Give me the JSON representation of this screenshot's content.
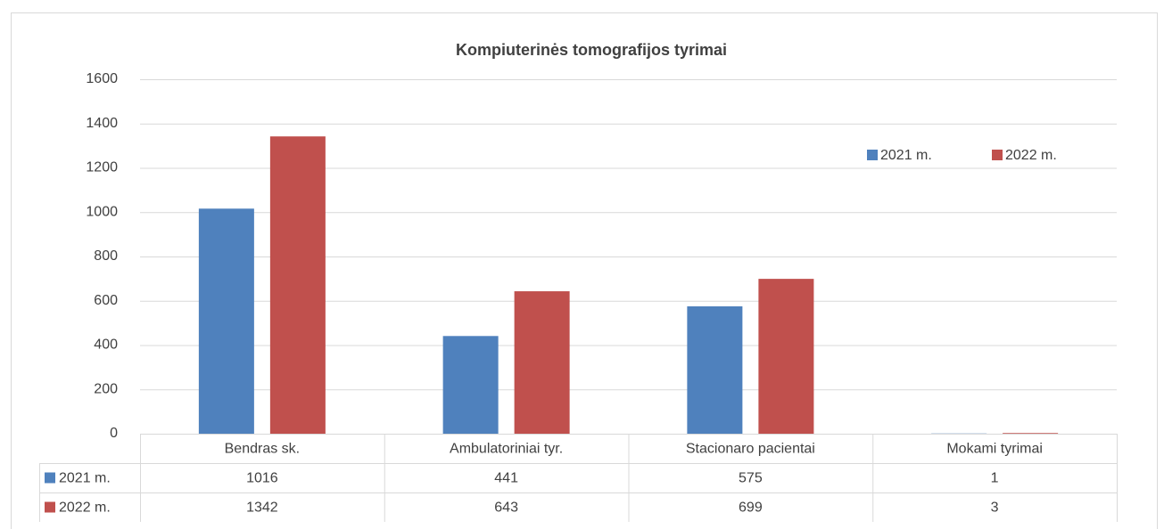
{
  "chart_data": {
    "type": "bar",
    "title": "Kompiuterinės tomografijos tyrimai",
    "categories": [
      "Bendras sk.",
      "Ambulatoriniai tyr.",
      "Stacionaro pacientai",
      "Mokami tyrimai"
    ],
    "series": [
      {
        "name": "2021 m.",
        "color": "#4f81bd",
        "values": [
          1016,
          441,
          575,
          1
        ]
      },
      {
        "name": "2022 m.",
        "color": "#c0504d",
        "values": [
          1342,
          643,
          699,
          3
        ]
      }
    ],
    "ylim": [
      0,
      1600
    ],
    "yticks": [
      0,
      200,
      400,
      600,
      800,
      1000,
      1200,
      1400,
      1600
    ],
    "grid": true
  }
}
